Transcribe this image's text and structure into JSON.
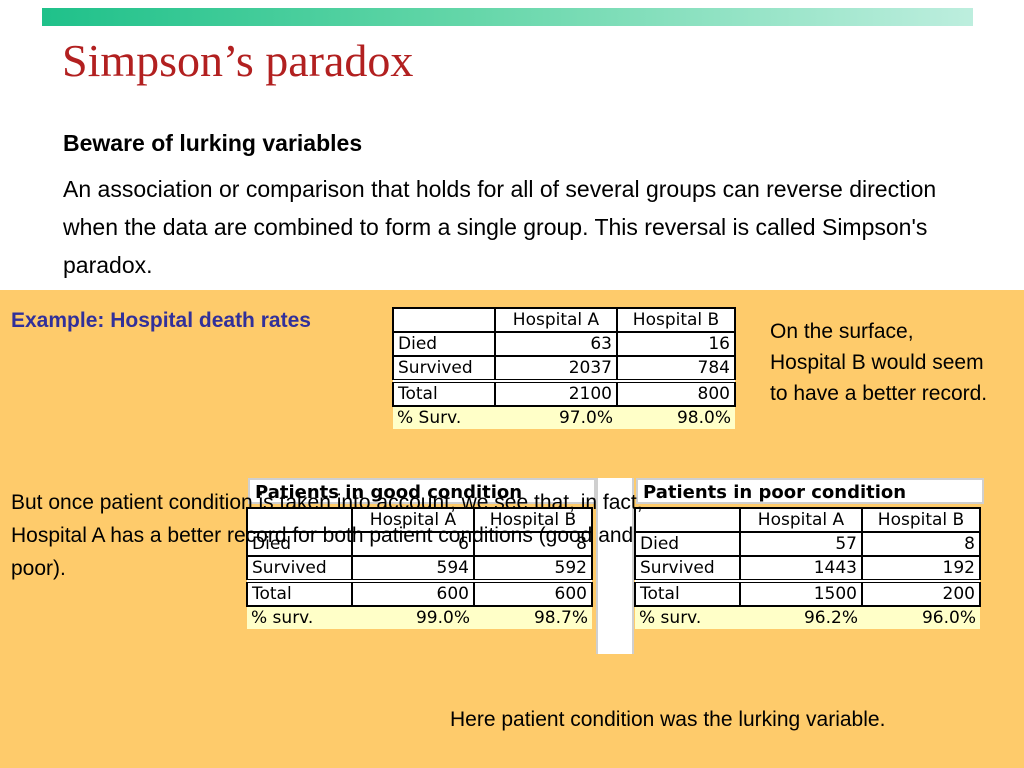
{
  "slide": {
    "title": "Simpson’s paradox",
    "subtitle": "Beware of lurking variables",
    "intro": "An association or comparison that holds for all of several groups can reverse direction when the data are combined to form a single group. This reversal is called Simpson's paradox.",
    "example_label": "Example: Hospital death rates",
    "surface_note": "On the surface, Hospital B would seem to have a better record.",
    "condition_note": "But once patient condition is taken into account, we see that, in fact, Hospital A has a better record for both patient conditions (good and poor).",
    "lurking_note": "Here patient condition was the lurking variable.",
    "colors": {
      "title": "#b22020",
      "example_label": "#31309a",
      "background_panel": "#fecb6b",
      "percent_row": "#ffffc8"
    }
  },
  "overall_table": {
    "headers": [
      "",
      "Hospital A",
      "Hospital B"
    ],
    "rows": [
      [
        "Died",
        "63",
        "16"
      ],
      [
        "Survived",
        "2037",
        "784"
      ],
      [
        "Total",
        "2100",
        "800"
      ],
      [
        "% Surv.",
        "97.0%",
        "98.0%"
      ]
    ]
  },
  "good_table": {
    "caption": "Patients in good condition",
    "headers": [
      "",
      "Hospital A",
      "Hospital B"
    ],
    "rows": [
      [
        "Died",
        "6",
        "8"
      ],
      [
        "Survived",
        "594",
        "592"
      ],
      [
        "Total",
        "600",
        "600"
      ],
      [
        "% surv.",
        "99.0%",
        "98.7%"
      ]
    ]
  },
  "poor_table": {
    "caption": "Patients in poor condition",
    "headers": [
      "",
      "Hospital A",
      "Hospital B"
    ],
    "rows": [
      [
        "Died",
        "57",
        "8"
      ],
      [
        "Survived",
        "1443",
        "192"
      ],
      [
        "Total",
        "1500",
        "200"
      ],
      [
        "% surv.",
        "96.2%",
        "96.0%"
      ]
    ]
  }
}
